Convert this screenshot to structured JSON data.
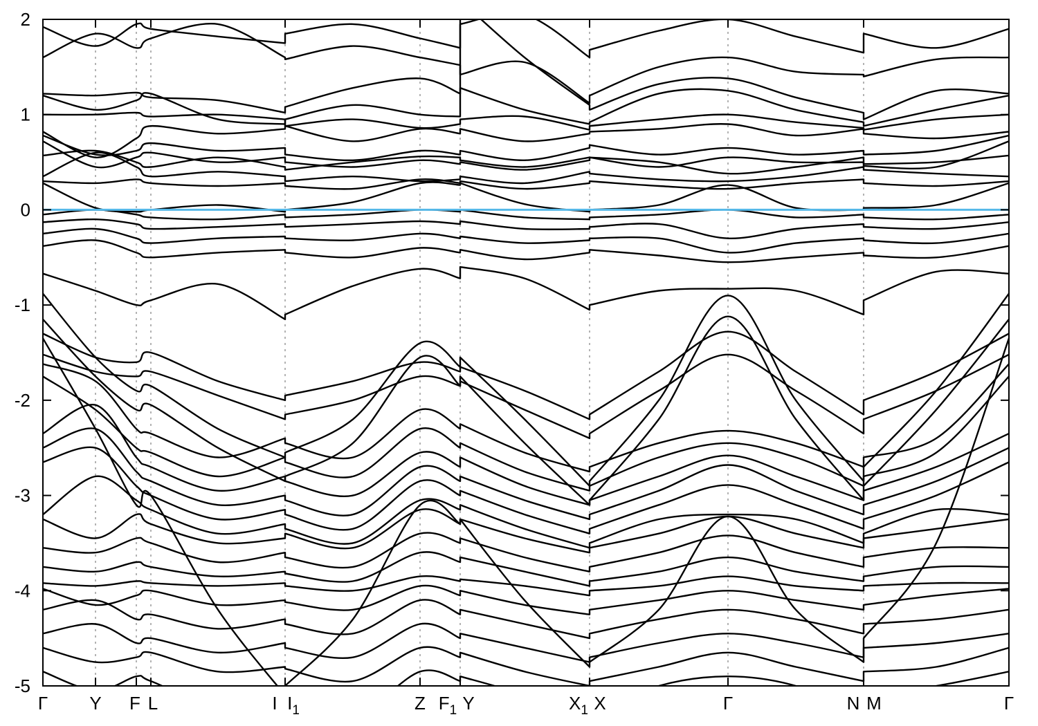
{
  "figure": {
    "background": "#ffffff",
    "description": "Electronic band structure along a monoclinic high-symmetry k-path with Fermi level highlighted at 0"
  },
  "chart_data": {
    "type": "line",
    "title": "",
    "xlabel": "",
    "ylabel": "",
    "ylim": [
      -5,
      2
    ],
    "yticks": [
      2,
      1,
      0,
      -1,
      -2,
      -3,
      -4,
      -5
    ],
    "grid": true,
    "grid_color": "#999999",
    "band_color": "#000000",
    "fermi_energy": 0,
    "fermi_color": "#55b8e8",
    "x_range": [
      62,
      1458
    ],
    "k_gridlines": [
      138,
      197,
      218,
      412,
      607,
      665,
      852,
      1052,
      1248
    ],
    "k_boundaries": [
      412,
      665,
      852,
      1248
    ],
    "kpath_labels": [
      {
        "text": "Γ",
        "x": 62
      },
      {
        "text": "Y",
        "x": 138
      },
      {
        "text": "F",
        "x": 195
      },
      {
        "text": "L",
        "x": 221
      },
      {
        "text": "I",
        "x": 397
      },
      {
        "text": "I",
        "sub": "1",
        "x": 424
      },
      {
        "text": "Z",
        "x": 607
      },
      {
        "text": "F",
        "sub": "1",
        "x": 647
      },
      {
        "text": "Y",
        "x": 677
      },
      {
        "text": "X",
        "sub": "1",
        "x": 836
      },
      {
        "text": "X",
        "x": 867
      },
      {
        "text": "Γ",
        "x": 1052
      },
      {
        "text": "N",
        "x": 1233
      },
      {
        "text": "M",
        "x": 1263
      },
      {
        "text": "Γ",
        "x": 1458
      }
    ],
    "x_stations": [
      62,
      138,
      197,
      218,
      315,
      412,
      412,
      510,
      607,
      665,
      665,
      758,
      852,
      852,
      952,
      1052,
      1150,
      1248,
      1248,
      1353,
      1458
    ],
    "bands": [
      [
        1.92,
        1.72,
        1.95,
        1.9,
        1.82,
        1.75,
        1.85,
        1.95,
        1.8,
        1.7,
        1.95,
        2.05,
        1.6,
        1.68,
        1.88,
        2.0,
        1.82,
        1.65,
        1.85,
        1.7,
        1.9
      ],
      [
        1.6,
        1.85,
        1.7,
        1.8,
        1.95,
        1.6,
        1.58,
        1.72,
        1.6,
        1.52,
        1.42,
        1.55,
        1.12,
        1.2,
        1.5,
        1.6,
        1.45,
        1.42,
        1.4,
        1.58,
        1.6
      ],
      [
        1.22,
        1.2,
        1.23,
        1.18,
        1.15,
        1.02,
        1.08,
        1.28,
        1.38,
        1.22,
        2.2,
        1.6,
        1.1,
        1.05,
        1.32,
        1.38,
        1.18,
        1.02,
        0.95,
        1.25,
        1.22
      ],
      [
        1.2,
        1.05,
        1.15,
        1.22,
        0.95,
        0.9,
        0.95,
        1.1,
        1.0,
        0.98,
        1.28,
        1.05,
        0.9,
        0.92,
        1.22,
        1.25,
        1.05,
        0.92,
        0.88,
        1.05,
        1.2
      ],
      [
        1.0,
        1.0,
        1.02,
        0.98,
        1.0,
        0.95,
        0.88,
        0.95,
        0.86,
        0.9,
        0.95,
        0.98,
        0.84,
        0.88,
        0.95,
        1.0,
        0.92,
        0.86,
        0.84,
        0.95,
        1.0
      ],
      [
        0.82,
        0.55,
        0.75,
        0.88,
        0.8,
        0.85,
        0.88,
        0.72,
        0.85,
        0.8,
        0.85,
        0.72,
        0.8,
        0.82,
        0.85,
        0.9,
        0.78,
        0.85,
        0.8,
        0.75,
        0.82
      ],
      [
        0.78,
        0.58,
        0.62,
        0.7,
        0.62,
        0.65,
        0.58,
        0.52,
        0.62,
        0.58,
        0.62,
        0.52,
        0.65,
        0.68,
        0.58,
        0.65,
        0.58,
        0.62,
        0.58,
        0.62,
        0.78
      ],
      [
        0.72,
        0.45,
        0.55,
        0.6,
        0.5,
        0.55,
        0.5,
        0.45,
        0.52,
        0.48,
        0.5,
        0.42,
        0.52,
        0.55,
        0.45,
        0.55,
        0.5,
        0.5,
        0.46,
        0.45,
        0.72
      ],
      [
        0.57,
        0.62,
        0.5,
        0.45,
        0.55,
        0.45,
        0.42,
        0.5,
        0.56,
        0.55,
        0.52,
        0.45,
        0.55,
        0.55,
        0.5,
        0.38,
        0.45,
        0.55,
        0.48,
        0.5,
        0.57
      ],
      [
        0.35,
        0.6,
        0.45,
        0.35,
        0.4,
        0.35,
        0.3,
        0.35,
        0.3,
        0.32,
        0.35,
        0.28,
        0.4,
        0.38,
        0.32,
        0.3,
        0.35,
        0.45,
        0.42,
        0.38,
        0.35
      ],
      [
        0.3,
        0.28,
        0.32,
        0.28,
        0.25,
        0.28,
        0.25,
        0.22,
        0.32,
        0.28,
        0.3,
        0.22,
        0.28,
        0.3,
        0.25,
        0.22,
        0.28,
        0.32,
        0.28,
        0.25,
        0.3
      ],
      [
        0.28,
        0.02,
        -0.02,
        0.0,
        0.05,
        -0.02,
        0.0,
        0.08,
        0.28,
        0.26,
        0.28,
        0.06,
        -0.02,
        0.0,
        0.05,
        0.26,
        0.02,
        0.0,
        0.02,
        0.05,
        0.28
      ],
      [
        -0.05,
        0.0,
        -0.05,
        -0.08,
        -0.1,
        -0.05,
        -0.08,
        -0.05,
        0.0,
        -0.02,
        0.0,
        -0.08,
        -0.1,
        -0.08,
        -0.05,
        0.0,
        -0.08,
        -0.05,
        -0.08,
        -0.1,
        -0.05
      ],
      [
        -0.13,
        -0.1,
        -0.15,
        -0.2,
        -0.18,
        -0.15,
        -0.18,
        -0.15,
        -0.12,
        -0.15,
        -0.12,
        -0.2,
        -0.2,
        -0.18,
        -0.15,
        -0.3,
        -0.2,
        -0.15,
        -0.18,
        -0.2,
        -0.13
      ],
      [
        -0.25,
        -0.2,
        -0.3,
        -0.35,
        -0.3,
        -0.28,
        -0.3,
        -0.32,
        -0.25,
        -0.3,
        -0.28,
        -0.35,
        -0.32,
        -0.3,
        -0.3,
        -0.45,
        -0.35,
        -0.3,
        -0.32,
        -0.35,
        -0.25
      ],
      [
        -0.38,
        -0.32,
        -0.45,
        -0.5,
        -0.45,
        -0.42,
        -0.45,
        -0.5,
        -0.4,
        -0.45,
        -0.42,
        -0.52,
        -0.45,
        -0.42,
        -0.48,
        -0.55,
        -0.5,
        -0.45,
        -0.48,
        -0.5,
        -0.38
      ],
      [
        -0.67,
        -0.85,
        -1.0,
        -0.95,
        -0.78,
        -1.15,
        -1.1,
        -0.8,
        -0.62,
        -0.72,
        -0.6,
        -0.72,
        -1.05,
        -1.0,
        -0.85,
        -0.83,
        -0.85,
        -1.1,
        -0.95,
        -0.65,
        -0.67
      ],
      [
        -0.88,
        -1.55,
        -1.9,
        -1.85,
        -2.3,
        -2.6,
        -2.55,
        -2.2,
        -1.4,
        -1.65,
        -1.55,
        -2.2,
        -2.9,
        -2.85,
        -2.0,
        -0.9,
        -2.0,
        -2.85,
        -2.7,
        -1.9,
        -0.88
      ],
      [
        -1.15,
        -1.75,
        -2.1,
        -2.05,
        -2.5,
        -2.85,
        -2.8,
        -2.45,
        -1.55,
        -1.85,
        -1.75,
        -2.45,
        -3.1,
        -3.05,
        -2.2,
        -1.12,
        -2.2,
        -3.05,
        -2.9,
        -2.1,
        -1.15
      ],
      [
        -1.3,
        -1.55,
        -1.6,
        -1.5,
        -1.8,
        -2.0,
        -1.95,
        -1.8,
        -1.6,
        -1.7,
        -1.65,
        -1.9,
        -2.2,
        -2.15,
        -1.7,
        -1.28,
        -1.7,
        -2.15,
        -2.0,
        -1.7,
        -1.3
      ],
      [
        -1.52,
        -1.7,
        -1.75,
        -1.7,
        -1.95,
        -2.2,
        -2.15,
        -2.0,
        -1.75,
        -1.85,
        -1.8,
        -2.1,
        -2.4,
        -2.35,
        -1.9,
        -1.52,
        -1.9,
        -2.35,
        -2.2,
        -1.9,
        -1.52
      ],
      [
        -1.62,
        -1.8,
        -2.3,
        -2.35,
        -2.6,
        -2.4,
        -2.45,
        -2.6,
        -2.1,
        -2.3,
        -2.25,
        -2.55,
        -2.75,
        -2.7,
        -2.45,
        -2.32,
        -2.45,
        -2.7,
        -2.6,
        -2.4,
        -1.62
      ],
      [
        -1.75,
        -2.1,
        -2.5,
        -2.55,
        -2.8,
        -2.6,
        -2.65,
        -2.8,
        -2.3,
        -2.5,
        -2.45,
        -2.75,
        -2.95,
        -2.9,
        -2.6,
        -2.45,
        -2.6,
        -2.9,
        -2.8,
        -2.55,
        -1.75
      ],
      [
        -2.35,
        -2.05,
        -2.6,
        -2.7,
        -2.95,
        -2.8,
        -2.85,
        -3.0,
        -2.55,
        -2.7,
        -2.6,
        -2.9,
        -3.1,
        -3.05,
        -2.8,
        -2.58,
        -2.8,
        -3.05,
        -2.95,
        -2.7,
        -2.35
      ],
      [
        -2.5,
        -2.3,
        -2.75,
        -2.85,
        -3.1,
        -3.0,
        -3.05,
        -3.2,
        -2.7,
        -2.85,
        -2.8,
        -3.05,
        -3.25,
        -3.2,
        -2.95,
        -2.68,
        -2.95,
        -3.2,
        -3.1,
        -2.85,
        -2.5
      ],
      [
        -2.65,
        -2.5,
        -2.9,
        -3.0,
        -3.25,
        -3.15,
        -3.2,
        -3.35,
        -2.85,
        -3.0,
        -2.95,
        -3.2,
        -3.4,
        -3.35,
        -3.1,
        -2.89,
        -3.1,
        -3.35,
        -3.25,
        -3.0,
        -2.65
      ],
      [
        -3.2,
        -2.8,
        -3.05,
        -3.15,
        -3.4,
        -3.3,
        -3.35,
        -3.5,
        -3.05,
        -3.15,
        -3.1,
        -3.35,
        -3.55,
        -3.5,
        -3.25,
        -3.2,
        -3.25,
        -3.5,
        -3.4,
        -3.15,
        -3.2
      ],
      [
        -3.25,
        -3.45,
        -3.2,
        -3.3,
        -3.5,
        -3.45,
        -3.4,
        -3.55,
        -3.15,
        -3.3,
        -3.25,
        -3.45,
        -3.6,
        -3.55,
        -3.4,
        -3.22,
        -3.4,
        -3.55,
        -3.45,
        -3.35,
        -3.25
      ],
      [
        -3.55,
        -3.6,
        -3.45,
        -3.5,
        -3.7,
        -3.6,
        -3.65,
        -3.75,
        -3.4,
        -3.5,
        -3.45,
        -3.65,
        -3.8,
        -3.75,
        -3.6,
        -3.42,
        -3.6,
        -3.75,
        -3.65,
        -3.55,
        -3.55
      ],
      [
        -3.75,
        -3.8,
        -3.7,
        -3.75,
        -3.85,
        -3.8,
        -3.82,
        -3.9,
        -3.6,
        -3.7,
        -3.65,
        -3.8,
        -3.95,
        -3.9,
        -3.8,
        -3.65,
        -3.8,
        -3.9,
        -3.85,
        -3.75,
        -3.75
      ],
      [
        -3.92,
        -3.95,
        -3.9,
        -3.92,
        -3.95,
        -3.92,
        -3.95,
        -4.0,
        -3.85,
        -3.9,
        -3.88,
        -3.95,
        -4.05,
        -4.0,
        -3.95,
        -3.85,
        -3.95,
        -4.0,
        -3.95,
        -3.92,
        -3.92
      ],
      [
        -3.98,
        -4.15,
        -4.05,
        -4.0,
        -4.15,
        -4.1,
        -4.12,
        -4.2,
        -3.95,
        -4.05,
        -4.0,
        -4.15,
        -4.25,
        -4.2,
        -4.1,
        -4.0,
        -4.1,
        -4.2,
        -4.15,
        -4.05,
        -3.98
      ],
      [
        -4.2,
        -4.1,
        -4.3,
        -4.25,
        -4.4,
        -4.3,
        -4.35,
        -4.45,
        -4.1,
        -4.25,
        -4.2,
        -4.35,
        -4.5,
        -4.45,
        -4.3,
        -4.2,
        -4.3,
        -4.45,
        -4.35,
        -4.3,
        -4.2
      ],
      [
        -4.45,
        -4.35,
        -4.55,
        -4.5,
        -4.65,
        -4.55,
        -4.6,
        -4.7,
        -4.35,
        -4.5,
        -4.45,
        -4.6,
        -4.75,
        -4.7,
        -4.55,
        -4.45,
        -4.55,
        -4.7,
        -4.6,
        -4.55,
        -4.45
      ],
      [
        -4.6,
        -4.75,
        -4.7,
        -4.65,
        -4.85,
        -4.8,
        -4.82,
        -4.95,
        -4.6,
        -4.7,
        -4.65,
        -4.85,
        -5.0,
        -4.95,
        -4.8,
        -4.65,
        -4.8,
        -4.95,
        -4.85,
        -4.8,
        -4.6
      ],
      [
        -4.85,
        -5.05,
        -4.9,
        -4.95,
        -5.2,
        -5.0,
        -5.05,
        -5.3,
        -4.85,
        -4.95,
        -4.9,
        -5.1,
        -5.4,
        -5.3,
        -5.0,
        -4.9,
        -5.0,
        -5.3,
        -5.1,
        -5.0,
        -4.85
      ],
      [
        -1.35,
        -2.3,
        -3.1,
        -3.0,
        -4.2,
        -5.1,
        -5.0,
        -4.3,
        -3.1,
        -3.3,
        -3.25,
        -4.1,
        -4.8,
        -4.75,
        -4.2,
        -3.22,
        -4.2,
        -4.75,
        -4.5,
        -3.5,
        -1.35
      ]
    ]
  }
}
